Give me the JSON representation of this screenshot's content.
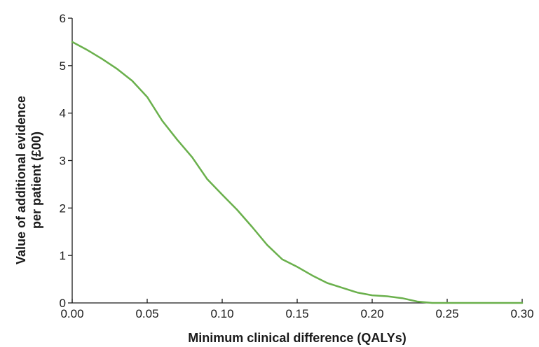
{
  "chart_data": {
    "type": "line",
    "title": "",
    "xlabel": "Minimum clinical difference (QALYs)",
    "ylabel_lines": [
      "Value of additional evidence",
      "per patient (£00)"
    ],
    "xlim": [
      0,
      0.3
    ],
    "ylim": [
      0,
      6
    ],
    "x_ticks": [
      "0.00",
      "0.05",
      "0.10",
      "0.15",
      "0.20",
      "0.25",
      "0.30"
    ],
    "y_ticks": [
      "0",
      "1",
      "2",
      "3",
      "4",
      "5",
      "6"
    ],
    "grid": false,
    "legend": "none",
    "series": [
      {
        "color": "#6ab04c",
        "x": [
          0.0,
          0.01,
          0.02,
          0.03,
          0.04,
          0.05,
          0.06,
          0.07,
          0.08,
          0.09,
          0.1,
          0.11,
          0.12,
          0.13,
          0.14,
          0.15,
          0.16,
          0.17,
          0.18,
          0.19,
          0.2,
          0.21,
          0.22,
          0.23,
          0.24,
          0.25,
          0.26,
          0.27,
          0.28,
          0.29,
          0.3
        ],
        "y": [
          5.5,
          5.33,
          5.14,
          4.93,
          4.68,
          4.34,
          3.84,
          3.44,
          3.07,
          2.61,
          2.28,
          1.96,
          1.6,
          1.22,
          0.92,
          0.76,
          0.58,
          0.42,
          0.32,
          0.22,
          0.16,
          0.14,
          0.1,
          0.03,
          0.0,
          0.0,
          0.0,
          0.0,
          0.0,
          0.0,
          0.0
        ]
      }
    ]
  }
}
